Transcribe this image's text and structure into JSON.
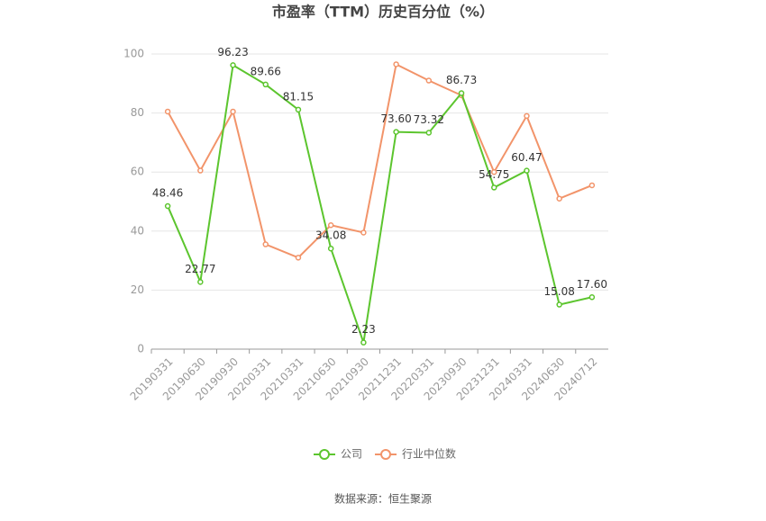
{
  "chart_data": {
    "type": "line",
    "title": "市盈率（TTM）历史百分位（%）",
    "categories": [
      "20190331",
      "20190630",
      "20190930",
      "20200331",
      "20210331",
      "20210630",
      "20210930",
      "20211231",
      "20220331",
      "20230930",
      "20231231",
      "20240331",
      "20240630",
      "20240712"
    ],
    "series": [
      {
        "name": "公司",
        "color": "#5cc52e",
        "values": [
          48.46,
          22.77,
          96.23,
          89.66,
          81.15,
          34.08,
          2.23,
          73.6,
          73.32,
          86.73,
          54.75,
          60.47,
          15.08,
          17.6
        ],
        "value_labels": [
          "48.46",
          "22.77",
          "96.23",
          "89.66",
          "81.15",
          "34.08",
          "2.23",
          "73.60",
          "73.32",
          "86.73",
          "54.75",
          "60.47",
          "15.08",
          "17.60"
        ]
      },
      {
        "name": "行业中位数",
        "color": "#f2946a",
        "values": [
          80.5,
          60.5,
          80.5,
          35.5,
          31,
          42,
          39.5,
          96.5,
          91,
          86,
          60,
          79,
          51,
          55.5
        ]
      }
    ],
    "ylim": [
      0,
      100
    ],
    "yticks": [
      0,
      20,
      40,
      60,
      80,
      100
    ],
    "grid": true,
    "legend": "bottom",
    "source": "数据来源：恒生聚源"
  }
}
